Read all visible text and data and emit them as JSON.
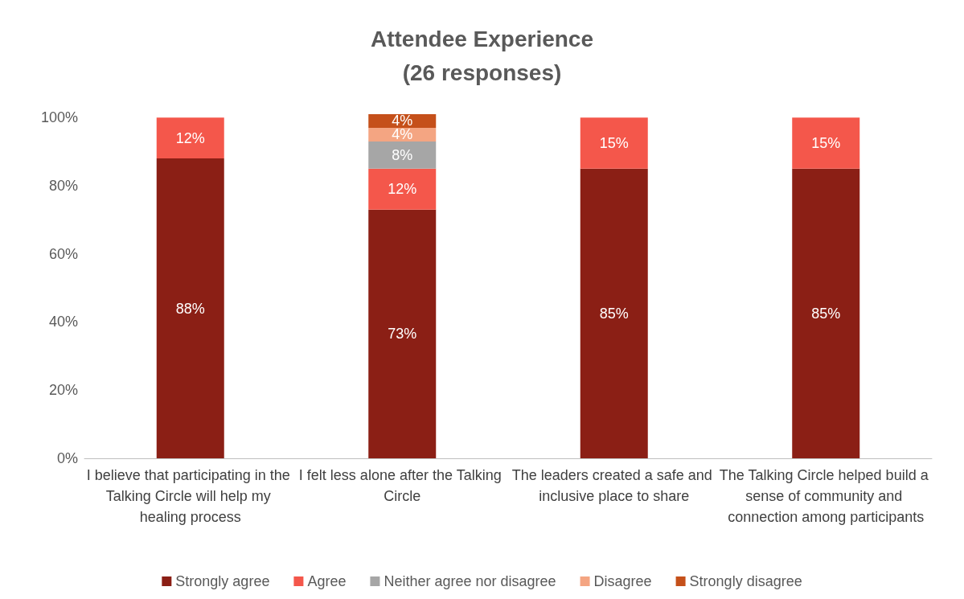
{
  "chart_data": {
    "type": "bar",
    "title": "Attendee Experience\n(26 responses)",
    "stacked": true,
    "data_labels": true,
    "legend": "bottom",
    "grid": false,
    "categories": [
      "I believe that participating in the Talking Circle will help my healing process",
      "I felt less alone after the Talking Circle",
      "The leaders created a safe and inclusive place to share",
      "The Talking Circle helped build a sense of community and connection among participants"
    ],
    "ylim": [
      0,
      101
    ],
    "yticks": [
      {
        "value": 0,
        "label": "0%"
      },
      {
        "value": 20,
        "label": "20%"
      },
      {
        "value": 40,
        "label": "40%"
      },
      {
        "value": 60,
        "label": "60%"
      },
      {
        "value": 80,
        "label": "80%"
      },
      {
        "value": 100,
        "label": "100%"
      }
    ],
    "series": [
      {
        "name": "Strongly agree",
        "color": "#8b1f15",
        "values": [
          88,
          73,
          85,
          85
        ],
        "value_labels": [
          "88%",
          "73%",
          "85%",
          "85%"
        ]
      },
      {
        "name": "Agree",
        "color": "#f4574b",
        "values": [
          12,
          12,
          15,
          15
        ],
        "value_labels": [
          "12%",
          "12%",
          "15%",
          "15%"
        ]
      },
      {
        "name": "Neither agree nor disagree",
        "color": "#a6a6a6",
        "values": [
          null,
          8,
          null,
          null
        ],
        "value_labels": [
          null,
          "8%",
          null,
          null
        ]
      },
      {
        "name": "Disagree",
        "color": "#f4a582",
        "values": [
          null,
          4,
          null,
          null
        ],
        "value_labels": [
          null,
          "4%",
          null,
          null
        ]
      },
      {
        "name": "Strongly disagree",
        "color": "#c5501a",
        "values": [
          null,
          4,
          null,
          null
        ],
        "value_labels": [
          null,
          "4%",
          null,
          null
        ]
      }
    ]
  }
}
